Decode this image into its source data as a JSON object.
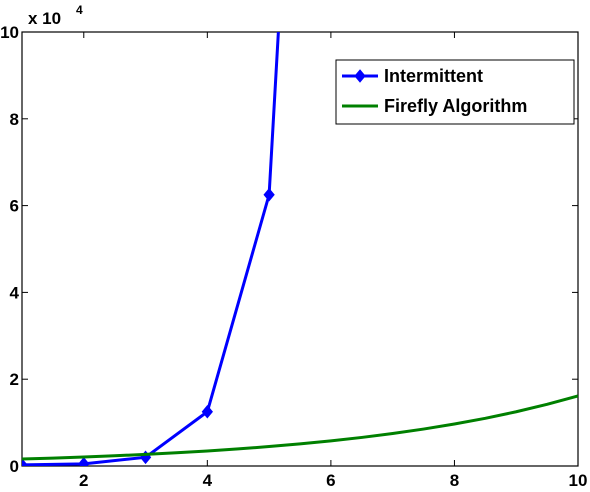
{
  "chart_data": {
    "type": "line",
    "xlim": [
      1,
      10
    ],
    "ylim": [
      0,
      100000
    ],
    "xticks": [
      2,
      4,
      6,
      8,
      10
    ],
    "yticks": [
      0,
      20000,
      40000,
      60000,
      80000,
      100000
    ],
    "xtick_labels": [
      "2",
      "4",
      "6",
      "8",
      "10"
    ],
    "ytick_labels": [
      "0",
      "2",
      "4",
      "6",
      "8",
      "10"
    ],
    "y_multiplier": {
      "base": "x 10",
      "exponent": "4"
    },
    "grid": false,
    "legend_position": "top-right",
    "series": [
      {
        "name": "Intermittent",
        "color": "#0000ff",
        "marker": "diamond",
        "x": [
          1,
          2,
          3,
          4,
          5,
          5.15
        ],
        "y": [
          250,
          500,
          2000,
          12500,
          62500,
          100000
        ],
        "marker_count": 5
      },
      {
        "name": "Firefly Algorithm",
        "color": "#008000",
        "marker": "none",
        "x": [
          1,
          1.5,
          2,
          2.5,
          3,
          3.5,
          4,
          4.5,
          5,
          5.5,
          6,
          6.5,
          7,
          7.5,
          8,
          8.5,
          9,
          9.5,
          10
        ],
        "y": [
          1600,
          1820,
          2070,
          2350,
          2680,
          3050,
          3460,
          3940,
          4480,
          5090,
          5790,
          6580,
          7480,
          8510,
          9670,
          10990,
          12500,
          14210,
          16150
        ]
      }
    ]
  }
}
